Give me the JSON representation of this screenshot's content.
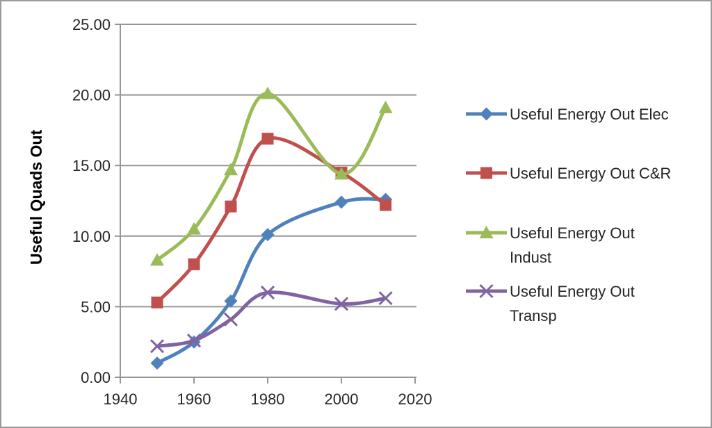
{
  "chart_data": {
    "type": "line",
    "title": "",
    "xlabel": "",
    "ylabel": "Useful Quads Out",
    "x": [
      1950,
      1960,
      1970,
      1980,
      2000,
      2012
    ],
    "series": [
      {
        "name": "Useful Energy Out Elec",
        "color": "#4F81BD",
        "marker": "diamond",
        "values": [
          1.0,
          2.5,
          5.4,
          10.1,
          12.4,
          12.6
        ],
        "legend_lines": [
          "Useful Energy Out Elec"
        ]
      },
      {
        "name": "Useful Energy Out C&R",
        "color": "#C0504D",
        "marker": "square",
        "values": [
          5.3,
          8.0,
          12.1,
          16.9,
          14.5,
          12.2
        ],
        "legend_lines": [
          "Useful Energy Out C&R"
        ]
      },
      {
        "name": "Useful Energy Out Indust",
        "color": "#9BBB59",
        "marker": "triangle",
        "values": [
          8.3,
          10.5,
          14.7,
          20.1,
          14.4,
          19.1
        ],
        "legend_lines": [
          "Useful Energy Out",
          "Indust"
        ]
      },
      {
        "name": "Useful Energy Out Transp",
        "color": "#8064A2",
        "marker": "x",
        "values": [
          2.2,
          2.6,
          4.1,
          6.0,
          5.2,
          5.6
        ],
        "legend_lines": [
          "Useful Energy Out",
          "Transp"
        ]
      }
    ],
    "xlim": [
      1940,
      2020
    ],
    "ylim": [
      0,
      25
    ],
    "x_tick_values": [
      1940,
      1960,
      1980,
      2000,
      2020
    ],
    "x_tick_labels": [
      "1940",
      "1960",
      "1980",
      "2000",
      "2020"
    ],
    "y_tick_values": [
      0,
      5,
      10,
      15,
      20,
      25
    ],
    "y_tick_labels": [
      "0.00",
      "5.00",
      "10.00",
      "15.00",
      "20.00",
      "25.00"
    ],
    "grid": "horizontal",
    "legend_position": "right",
    "smoothed": true,
    "colors": {
      "grid": "#969696",
      "axis": "#969696",
      "tick_text": "#262626",
      "border": "#9A9A9A",
      "background": "#FFFFFF"
    }
  }
}
